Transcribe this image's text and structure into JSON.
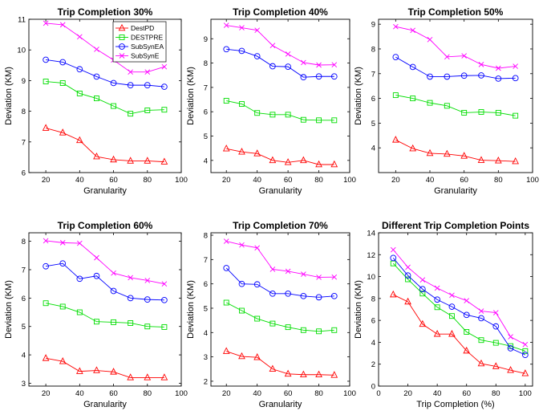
{
  "colors": {
    "DestPD": "#ff0000",
    "DESTPRE": "#00dd00",
    "SubSynEA": "#0000ff",
    "SubSynE": "#ff00ff"
  },
  "chart_data": [
    {
      "type": "line",
      "title": "Trip Completion 30%",
      "xlabel": "Granularity",
      "ylabel": "Deviation (KM)",
      "xlim": [
        10,
        100
      ],
      "ylim": [
        6,
        11
      ],
      "xticks": [
        20,
        40,
        60,
        80,
        100
      ],
      "yticks": [
        6,
        7,
        8,
        9,
        10,
        11
      ],
      "legend": "top-right",
      "x": [
        20,
        30,
        40,
        50,
        60,
        70,
        80,
        90
      ],
      "series": [
        {
          "name": "DestPD",
          "marker": "triangle",
          "values": [
            7.45,
            7.3,
            7.05,
            6.52,
            6.42,
            6.38,
            6.38,
            6.35
          ]
        },
        {
          "name": "DESTPRE",
          "marker": "square",
          "values": [
            8.97,
            8.92,
            8.58,
            8.42,
            8.17,
            7.92,
            8.03,
            8.05
          ]
        },
        {
          "name": "SubSynEA",
          "marker": "circle",
          "values": [
            9.68,
            9.6,
            9.37,
            9.13,
            8.92,
            8.85,
            8.85,
            8.8
          ]
        },
        {
          "name": "SubSynE",
          "marker": "x",
          "values": [
            10.87,
            10.82,
            10.43,
            10.02,
            9.67,
            9.28,
            9.28,
            9.45
          ]
        }
      ]
    },
    {
      "type": "line",
      "title": "Trip Completion 40%",
      "xlabel": "Granularity",
      "ylabel": "Deviation (KM)",
      "xlim": [
        10,
        100
      ],
      "ylim": [
        3.5,
        9.8
      ],
      "xticks": [
        20,
        40,
        60,
        80,
        100
      ],
      "yticks": [
        4,
        5,
        6,
        7,
        8,
        9
      ],
      "x": [
        20,
        30,
        40,
        50,
        60,
        70,
        80,
        90
      ],
      "series": [
        {
          "name": "DestPD",
          "marker": "triangle",
          "values": [
            4.48,
            4.35,
            4.28,
            4.0,
            3.92,
            4.0,
            3.83,
            3.83
          ]
        },
        {
          "name": "DESTPRE",
          "marker": "square",
          "values": [
            6.45,
            6.32,
            5.95,
            5.88,
            5.88,
            5.67,
            5.65,
            5.65
          ]
        },
        {
          "name": "SubSynEA",
          "marker": "circle",
          "values": [
            8.57,
            8.5,
            8.28,
            7.87,
            7.85,
            7.42,
            7.45,
            7.45
          ]
        },
        {
          "name": "SubSynE",
          "marker": "x",
          "values": [
            9.55,
            9.45,
            9.35,
            8.72,
            8.37,
            8.02,
            7.92,
            7.93
          ]
        }
      ]
    },
    {
      "type": "line",
      "title": "Trip Completion 50%",
      "xlabel": "Granularity",
      "ylabel": "Deviation (KM)",
      "xlim": [
        10,
        100
      ],
      "ylim": [
        3,
        9.2
      ],
      "xticks": [
        20,
        40,
        60,
        80,
        100
      ],
      "yticks": [
        4,
        5,
        6,
        7,
        8,
        9
      ],
      "x": [
        20,
        30,
        40,
        50,
        60,
        70,
        80,
        90
      ],
      "series": [
        {
          "name": "DestPD",
          "marker": "triangle",
          "values": [
            4.32,
            3.97,
            3.78,
            3.75,
            3.67,
            3.5,
            3.48,
            3.45
          ]
        },
        {
          "name": "DESTPRE",
          "marker": "square",
          "values": [
            6.13,
            6.0,
            5.82,
            5.7,
            5.42,
            5.45,
            5.42,
            5.3
          ]
        },
        {
          "name": "SubSynEA",
          "marker": "circle",
          "values": [
            7.67,
            7.27,
            6.88,
            6.88,
            6.92,
            6.93,
            6.8,
            6.82
          ]
        },
        {
          "name": "SubSynE",
          "marker": "x",
          "values": [
            8.9,
            8.75,
            8.38,
            7.68,
            7.72,
            7.37,
            7.22,
            7.3
          ]
        }
      ]
    },
    {
      "type": "line",
      "title": "Trip Completion 60%",
      "xlabel": "Granularity",
      "ylabel": "Deviation (KM)",
      "xlim": [
        10,
        100
      ],
      "ylim": [
        2.9,
        8.3
      ],
      "xticks": [
        20,
        40,
        60,
        80,
        100
      ],
      "yticks": [
        3,
        4,
        5,
        6,
        7,
        8
      ],
      "x": [
        20,
        30,
        40,
        50,
        60,
        70,
        80,
        90
      ],
      "series": [
        {
          "name": "DestPD",
          "marker": "triangle",
          "values": [
            3.88,
            3.77,
            3.42,
            3.45,
            3.4,
            3.2,
            3.2,
            3.2
          ]
        },
        {
          "name": "DESTPRE",
          "marker": "square",
          "values": [
            5.82,
            5.7,
            5.5,
            5.17,
            5.15,
            5.12,
            5.0,
            4.98
          ]
        },
        {
          "name": "SubSynEA",
          "marker": "circle",
          "values": [
            7.12,
            7.22,
            6.68,
            6.78,
            6.25,
            6.0,
            5.95,
            5.93
          ]
        },
        {
          "name": "SubSynE",
          "marker": "x",
          "values": [
            8.02,
            7.95,
            7.93,
            7.42,
            6.88,
            6.72,
            6.62,
            6.5
          ]
        }
      ]
    },
    {
      "type": "line",
      "title": "Trip Completion 70%",
      "xlabel": "Granularity",
      "ylabel": "Deviation (KM)",
      "xlim": [
        10,
        100
      ],
      "ylim": [
        1.8,
        8.1
      ],
      "xticks": [
        20,
        40,
        60,
        80,
        100
      ],
      "yticks": [
        2,
        3,
        4,
        5,
        6,
        7,
        8
      ],
      "x": [
        20,
        30,
        40,
        50,
        60,
        70,
        80,
        90
      ],
      "series": [
        {
          "name": "DestPD",
          "marker": "triangle",
          "values": [
            3.23,
            3.02,
            2.98,
            2.5,
            2.3,
            2.27,
            2.27,
            2.25
          ]
        },
        {
          "name": "DESTPRE",
          "marker": "square",
          "values": [
            5.23,
            4.9,
            4.57,
            4.37,
            4.22,
            4.1,
            4.05,
            4.1
          ]
        },
        {
          "name": "SubSynEA",
          "marker": "circle",
          "values": [
            6.65,
            6.0,
            5.98,
            5.6,
            5.6,
            5.5,
            5.45,
            5.5
          ]
        },
        {
          "name": "SubSynE",
          "marker": "x",
          "values": [
            7.75,
            7.6,
            7.48,
            6.6,
            6.52,
            6.4,
            6.27,
            6.28
          ]
        }
      ]
    },
    {
      "type": "line",
      "title": "Different Trip Completion Points",
      "xlabel": "Trip Completion (%)",
      "ylabel": "Deviation (KM)",
      "xlim": [
        0,
        105
      ],
      "ylim": [
        0,
        14
      ],
      "xticks": [
        0,
        20,
        40,
        60,
        80,
        100
      ],
      "yticks": [
        0,
        2,
        4,
        6,
        8,
        10,
        12,
        14
      ],
      "x": [
        10,
        20,
        30,
        40,
        50,
        60,
        70,
        80,
        90,
        100
      ],
      "series": [
        {
          "name": "DestPD",
          "marker": "triangle",
          "values": [
            8.35,
            7.7,
            5.65,
            4.75,
            4.75,
            3.22,
            2.05,
            1.8,
            1.45,
            1.15
          ]
        },
        {
          "name": "DESTPRE",
          "marker": "square",
          "values": [
            11.2,
            9.75,
            8.45,
            7.2,
            6.4,
            4.95,
            4.2,
            3.95,
            3.65,
            3.2
          ]
        },
        {
          "name": "SubSynEA",
          "marker": "circle",
          "values": [
            11.7,
            10.1,
            8.85,
            7.9,
            7.25,
            6.5,
            6.2,
            5.45,
            3.45,
            2.85
          ]
        },
        {
          "name": "SubSynE",
          "marker": "x",
          "values": [
            12.45,
            10.85,
            9.7,
            8.95,
            8.3,
            7.8,
            6.85,
            6.7,
            4.5,
            3.8
          ]
        }
      ]
    }
  ]
}
